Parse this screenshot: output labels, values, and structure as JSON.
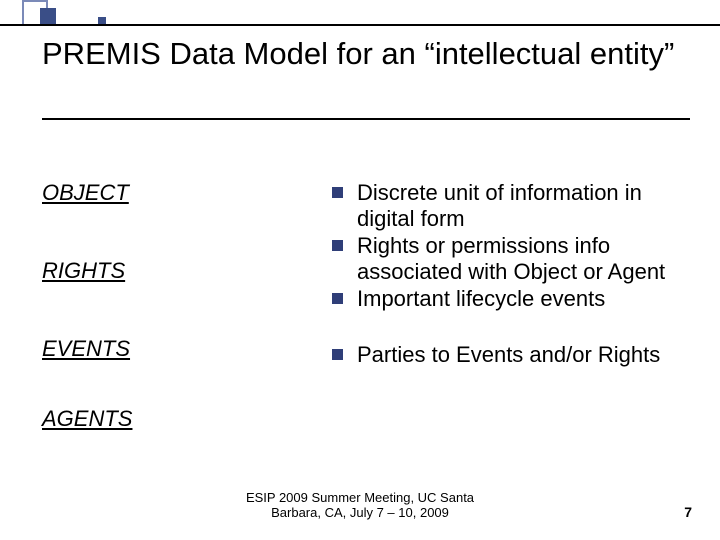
{
  "decor": {
    "sq_outline_color": "#7b8ab8",
    "sq_solid_color": "#3a4e87",
    "line_color": "#000000"
  },
  "title": {
    "text": "PREMIS Data Model for an “intellectual entity”",
    "fontsize": 31
  },
  "left": {
    "items": [
      "OBJECT",
      "RIGHTS",
      "EVENTS",
      "AGENTS"
    ],
    "fontsize": 22,
    "gaps": [
      0,
      52,
      52,
      44
    ]
  },
  "right": {
    "bullets": [
      "Discrete unit of information in digital form",
      "Rights or permissions info associated with Object or Agent",
      "Important lifecycle events",
      "Parties to Events and/or Rights"
    ],
    "fontsize": 22,
    "bullet_color": "#2f3e78",
    "gaps": [
      0,
      0,
      0,
      30
    ]
  },
  "footer": {
    "text": "ESIP 2009 Summer Meeting, UC Santa Barbara, CA, July 7 – 10, 2009",
    "fontsize": 13
  },
  "page": "7",
  "page_fontsize": 14
}
